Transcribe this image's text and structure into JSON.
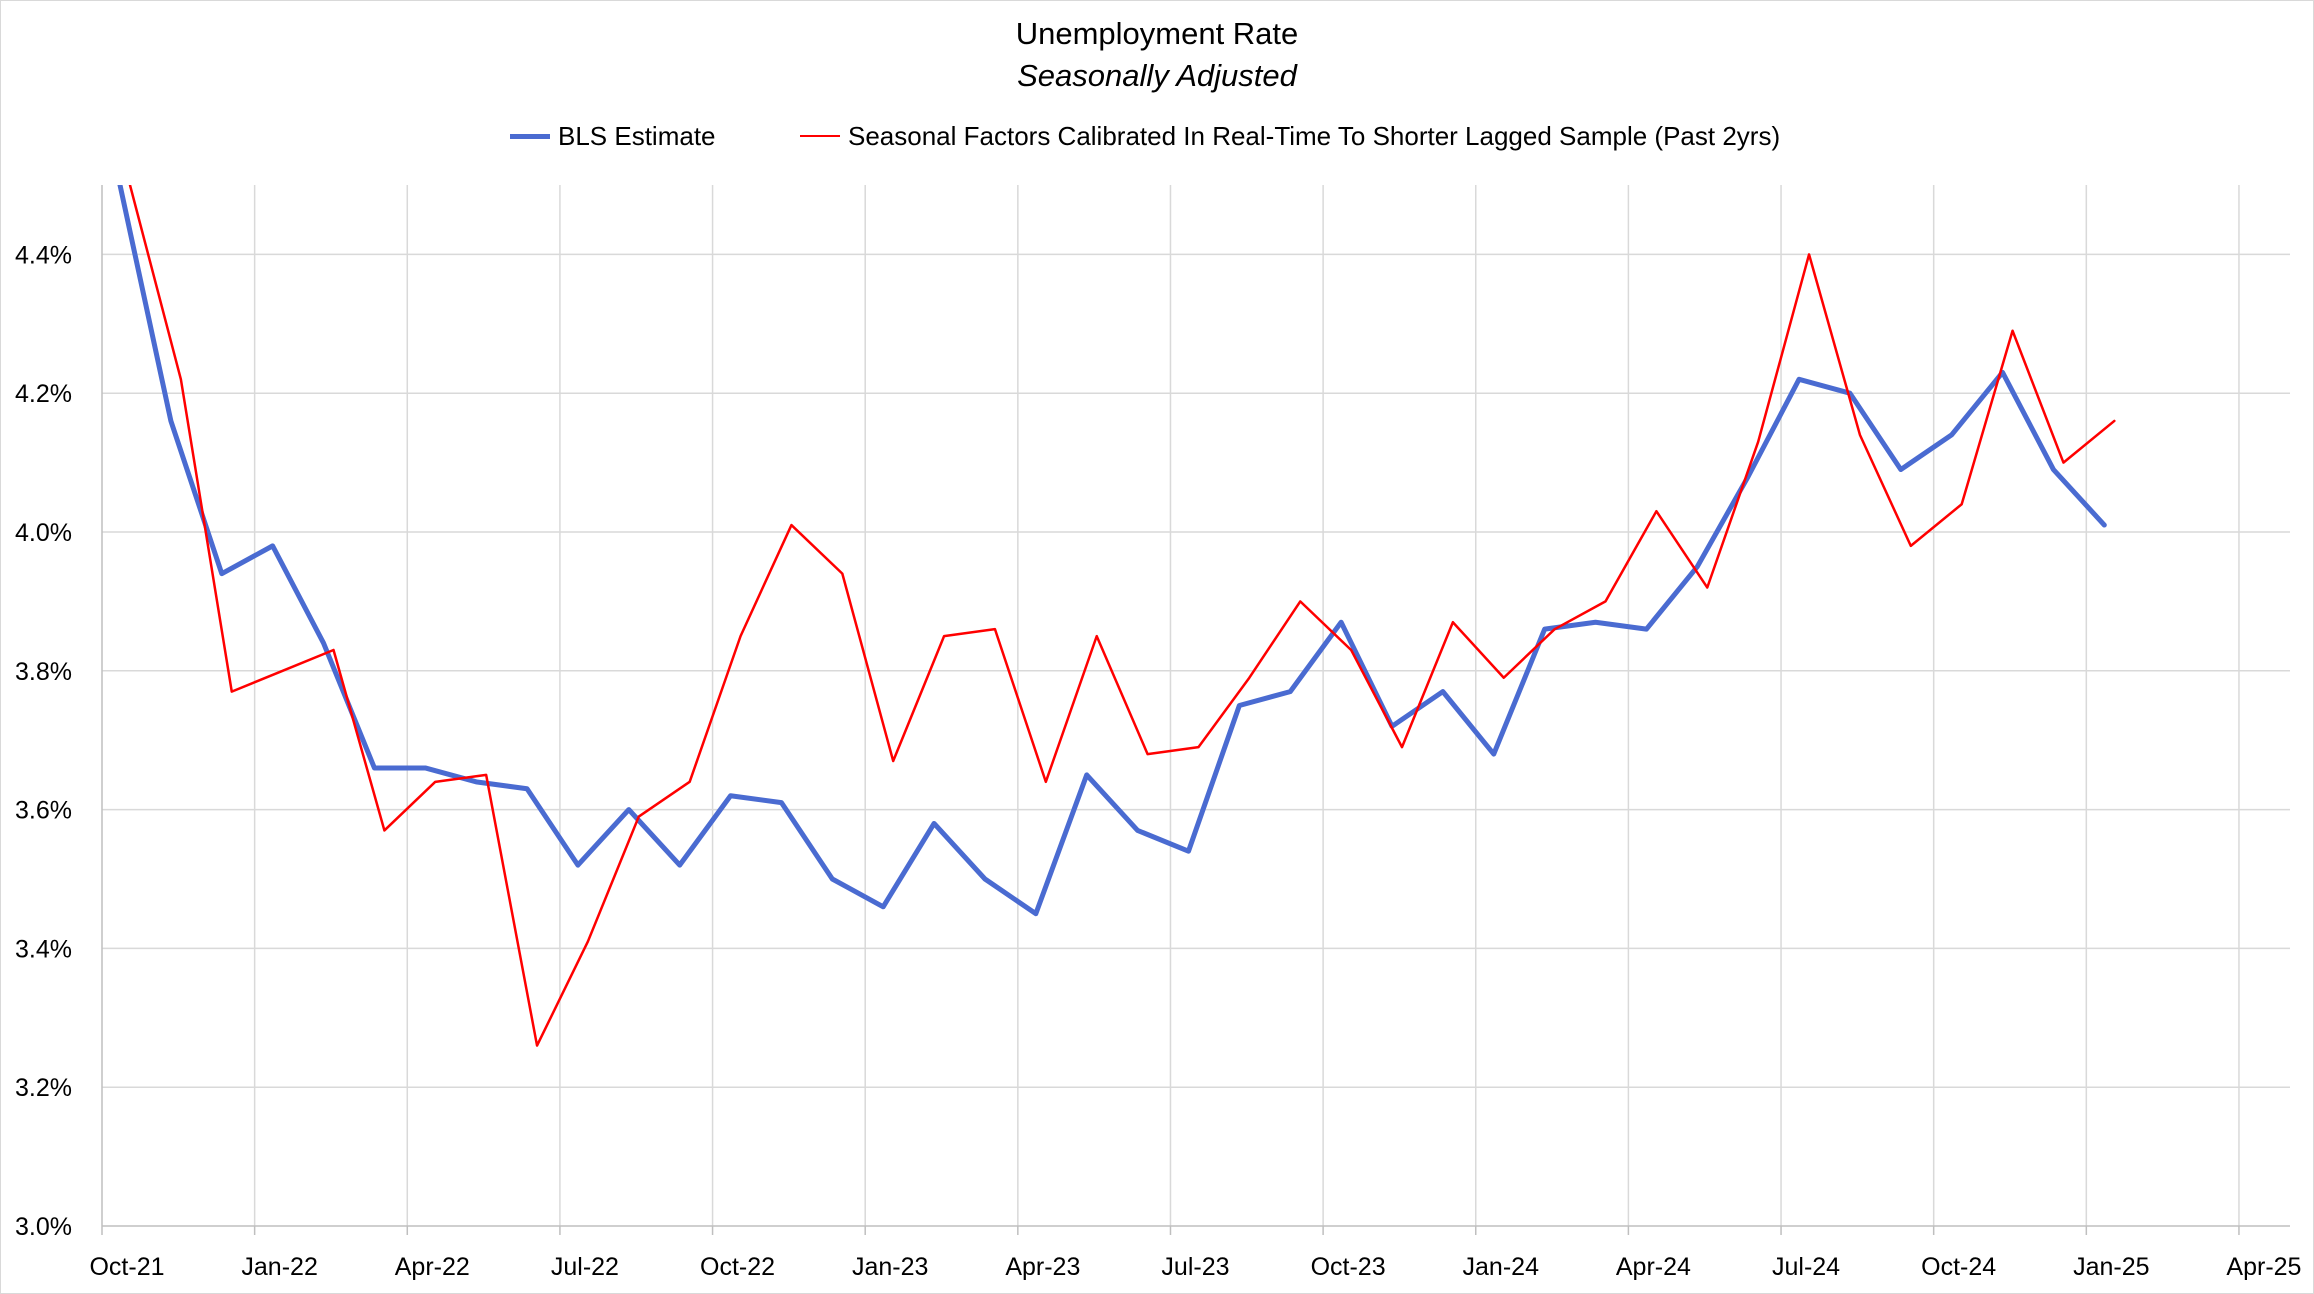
{
  "chart_data": {
    "type": "line",
    "title": "Unemployment Rate",
    "subtitle": "Seasonally Adjusted",
    "ylim": [
      3.0,
      4.5
    ],
    "yticks": [
      3.0,
      3.2,
      3.4,
      3.6,
      3.8,
      4.0,
      4.2,
      4.4
    ],
    "ytick_labels": [
      "3.0%",
      "3.2%",
      "3.4%",
      "3.6%",
      "3.8%",
      "4.0%",
      "4.2%",
      "4.4%"
    ],
    "xtick_labels": [
      "Oct-21",
      "Jan-22",
      "Apr-22",
      "Jul-22",
      "Oct-22",
      "Jan-23",
      "Apr-23",
      "Jul-23",
      "Oct-23",
      "Jan-24",
      "Apr-24",
      "Jul-24",
      "Oct-24",
      "Jan-25",
      "Apr-25"
    ],
    "grid": true,
    "legend_position": "top",
    "x_start": "2021-10",
    "x": [
      "2021-10",
      "2021-11",
      "2021-12",
      "2022-01",
      "2022-02",
      "2022-03",
      "2022-04",
      "2022-05",
      "2022-06",
      "2022-07",
      "2022-08",
      "2022-09",
      "2022-10",
      "2022-11",
      "2022-12",
      "2023-01",
      "2023-02",
      "2023-03",
      "2023-04",
      "2023-05",
      "2023-06",
      "2023-07",
      "2023-08",
      "2023-09",
      "2023-10",
      "2023-11",
      "2023-12",
      "2024-01",
      "2024-02",
      "2024-03",
      "2024-04",
      "2024-05",
      "2024-06",
      "2024-07",
      "2024-08",
      "2024-09",
      "2024-10",
      "2024-11",
      "2024-12",
      "2025-01"
    ],
    "series": [
      {
        "name": "BLS Estimate",
        "color": "#4a6bd1",
        "values": [
          4.5,
          4.16,
          3.94,
          3.98,
          3.84,
          3.66,
          3.66,
          3.64,
          3.63,
          3.52,
          3.6,
          3.52,
          3.62,
          3.61,
          3.5,
          3.46,
          3.58,
          3.5,
          3.45,
          3.65,
          3.57,
          3.54,
          3.75,
          3.77,
          3.87,
          3.72,
          3.77,
          3.68,
          3.86,
          3.87,
          3.86,
          3.95,
          4.08,
          4.22,
          4.2,
          4.09,
          4.14,
          4.23,
          4.09,
          4.01
        ]
      },
      {
        "name": "Seasonal Factors Calibrated In Real-Time To Shorter Lagged Sample (Past 2yrs)",
        "color": "#ff0000",
        "values": [
          4.5,
          4.22,
          3.77,
          3.8,
          3.83,
          3.57,
          3.64,
          3.65,
          3.26,
          3.41,
          3.59,
          3.64,
          3.85,
          4.01,
          3.94,
          3.67,
          3.85,
          3.86,
          3.64,
          3.85,
          3.68,
          3.69,
          3.79,
          3.9,
          3.83,
          3.69,
          3.87,
          3.79,
          3.86,
          3.9,
          4.03,
          3.92,
          4.13,
          4.4,
          4.14,
          3.98,
          4.04,
          4.29,
          4.1,
          4.16
        ]
      }
    ]
  }
}
